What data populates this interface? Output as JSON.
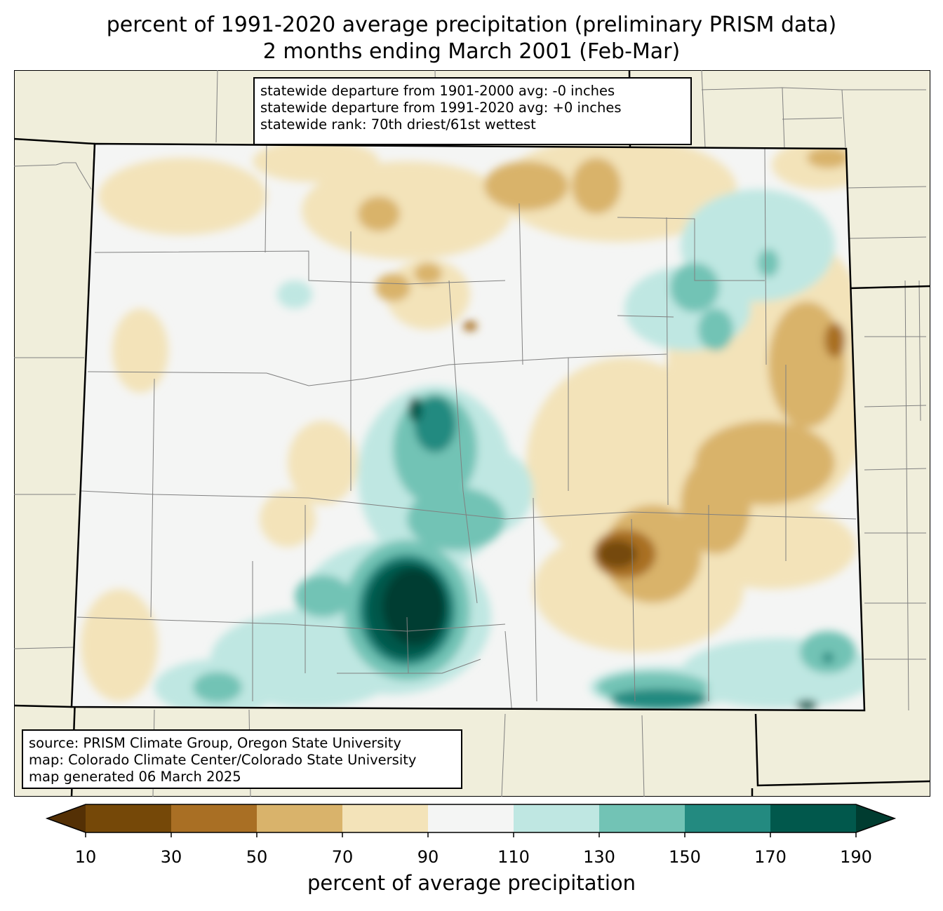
{
  "title": {
    "line1": "percent of 1991-2020 average precipitation (preliminary PRISM data)",
    "line2": "2 months ending March 2001 (Feb-Mar)"
  },
  "stats": {
    "line1": "statewide departure from 1901-2000 avg: -0 inches",
    "line2": "statewide departure from 1991-2020 avg: +0 inches",
    "line3": "statewide rank: 70th driest/61st wettest"
  },
  "source": {
    "line1": "source: PRISM Climate Group, Oregon State University",
    "line2": "map: Colorado Climate Center/Colorado State University",
    "line3": "map generated 06 March 2025"
  },
  "colorbar": {
    "label": "percent of average precipitation",
    "ticks": [
      "10",
      "30",
      "50",
      "70",
      "90",
      "110",
      "130",
      "150",
      "170",
      "190"
    ],
    "colors": [
      "#754808",
      "#a96f24",
      "#d9b36b",
      "#f3e3b9",
      "#f4f5f4",
      "#bfe7e2",
      "#72c3b5",
      "#238a80",
      "#01584c"
    ],
    "under_color": "#543005",
    "over_color": "#003c30"
  },
  "colors": {
    "land_outside": "#f0eedb",
    "state_border": "#000000",
    "county_lines": "#808080"
  }
}
